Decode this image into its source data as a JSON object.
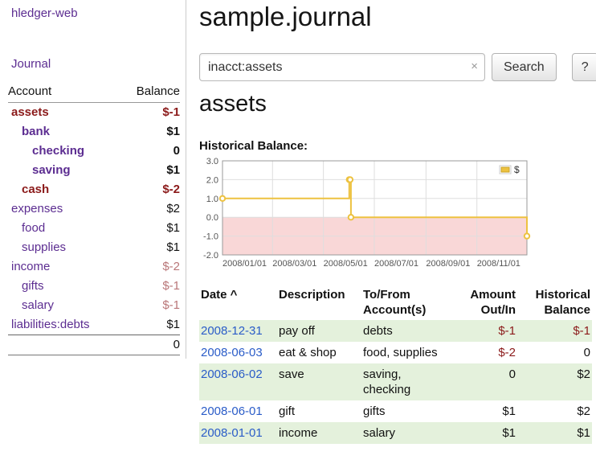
{
  "colors": {
    "purple": "#5c2d91",
    "maroon": "#8b1a1a",
    "rose": "#b97678",
    "link_blue": "#2a5cc8",
    "row_green": "#e4f1dc",
    "chart_line": "#edc240",
    "chart_negative_bg": "#f9d7d7"
  },
  "sidebar": {
    "brand": "hledger-web",
    "journal_link": "Journal",
    "header": {
      "account": "Account",
      "balance": "Balance"
    },
    "accounts": [
      {
        "name": "assets",
        "level": 0,
        "bold": true,
        "name_tone": "maroon",
        "balance": "$-1",
        "balance_tone": "maroon"
      },
      {
        "name": "bank",
        "level": 1,
        "bold": true,
        "name_tone": "purple",
        "balance": "$1",
        "balance_tone": "black"
      },
      {
        "name": "checking",
        "level": 2,
        "bold": true,
        "name_tone": "purple",
        "balance": "0",
        "balance_tone": "black"
      },
      {
        "name": "saving",
        "level": 2,
        "bold": true,
        "name_tone": "purple",
        "balance": "$1",
        "balance_tone": "black"
      },
      {
        "name": "cash",
        "level": 1,
        "bold": true,
        "name_tone": "maroon",
        "balance": "$-2",
        "balance_tone": "maroon"
      },
      {
        "name": "expenses",
        "level": 0,
        "bold": false,
        "name_tone": "purple",
        "balance": "$2",
        "balance_tone": "black"
      },
      {
        "name": "food",
        "level": 1,
        "bold": false,
        "name_tone": "purple",
        "balance": "$1",
        "balance_tone": "black"
      },
      {
        "name": "supplies",
        "level": 1,
        "bold": false,
        "name_tone": "purple",
        "balance": "$1",
        "balance_tone": "black"
      },
      {
        "name": "income",
        "level": 0,
        "bold": false,
        "name_tone": "purple",
        "balance": "$-2",
        "balance_tone": "rose"
      },
      {
        "name": "gifts",
        "level": 1,
        "bold": false,
        "name_tone": "purple",
        "balance": "$-1",
        "balance_tone": "rose"
      },
      {
        "name": "salary",
        "level": 1,
        "bold": false,
        "name_tone": "purple",
        "balance": "$-1",
        "balance_tone": "rose"
      },
      {
        "name": "liabilities:debts",
        "level": 0,
        "bold": false,
        "name_tone": "purple",
        "balance": "$1",
        "balance_tone": "black"
      }
    ],
    "total": "0"
  },
  "main": {
    "title": "sample.journal",
    "search": {
      "value": "inacct:assets",
      "clear_icon": "×",
      "button": "Search",
      "help": "?"
    },
    "heading": "assets",
    "chart_label": "Historical Balance:"
  },
  "chart_data": {
    "type": "line",
    "title": "Historical Balance",
    "step": true,
    "legend": {
      "label": "$",
      "position": "top-right"
    },
    "xlim": [
      "2008-01-01",
      "2008-12-31"
    ],
    "ylim": [
      -2,
      3
    ],
    "y_ticks": [
      3,
      2,
      1,
      0,
      -1,
      -2
    ],
    "x_ticks": [
      "2008/01/01",
      "2008/03/01",
      "2008/05/01",
      "2008/07/01",
      "2008/09/01",
      "2008/11/01"
    ],
    "series": [
      {
        "name": "$",
        "color": "#edc240",
        "points": [
          [
            "2008-01-01",
            1
          ],
          [
            "2008-06-01",
            2
          ],
          [
            "2008-06-02",
            2
          ],
          [
            "2008-06-03",
            0
          ],
          [
            "2008-12-31",
            -1
          ]
        ]
      }
    ]
  },
  "register": {
    "columns": [
      {
        "label": "Date",
        "sort_icon": "^",
        "align": "left"
      },
      {
        "label": "Description",
        "align": "left"
      },
      {
        "label": "To/From\nAccount(s)",
        "align": "left"
      },
      {
        "label": "Amount\nOut/In",
        "align": "right"
      },
      {
        "label": "Historical\nBalance",
        "align": "right"
      }
    ],
    "rows": [
      {
        "date": "2008-12-31",
        "description": "pay off",
        "accounts": "debts",
        "amount": "$-1",
        "amount_negative": true,
        "balance": "$-1",
        "balance_negative": true,
        "shaded": true
      },
      {
        "date": "2008-06-03",
        "description": "eat & shop",
        "accounts": "food, supplies",
        "amount": "$-2",
        "amount_negative": true,
        "balance": "0",
        "balance_negative": false,
        "shaded": false
      },
      {
        "date": "2008-06-02",
        "description": "save",
        "accounts": "saving,\nchecking",
        "amount": "0",
        "amount_negative": false,
        "balance": "$2",
        "balance_negative": false,
        "shaded": true
      },
      {
        "date": "2008-06-01",
        "description": "gift",
        "accounts": "gifts",
        "amount": "$1",
        "amount_negative": false,
        "balance": "$2",
        "balance_negative": false,
        "shaded": false
      },
      {
        "date": "2008-01-01",
        "description": "income",
        "accounts": "salary",
        "amount": "$1",
        "amount_negative": false,
        "balance": "$1",
        "balance_negative": false,
        "shaded": true
      }
    ]
  }
}
